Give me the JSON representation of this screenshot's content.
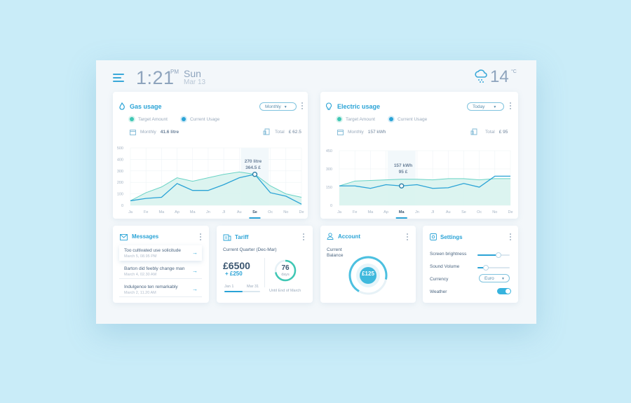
{
  "header": {
    "time": "1:21",
    "ampm": "PM",
    "day": "Sun",
    "date": "Mar 13",
    "temperature": "14",
    "temp_unit": "°C",
    "weather_icon": "cloud-snow-icon"
  },
  "gas": {
    "title": "Gas usage",
    "period": "Monthly",
    "legend_target": "Target Amount",
    "legend_current": "Current Usage",
    "monthly_label": "Monthly",
    "monthly_value": "41.6 litre",
    "total_label": "Total",
    "total_value": "£ 62.5",
    "tooltip_line1": "270 litre",
    "tooltip_line2": "364.5 £",
    "colors": {
      "target": "#3fc7b4",
      "current": "#2aa3d6"
    }
  },
  "electric": {
    "title": "Electric usage",
    "period": "Today",
    "legend_target": "Target Amount",
    "legend_current": "Current Usage",
    "monthly_label": "Monthly",
    "monthly_value": "157 kWh",
    "total_label": "Total",
    "total_value": "£ 95",
    "tooltip_line1": "157 kWh",
    "tooltip_line2": "95 £"
  },
  "chart_data": [
    {
      "type": "area",
      "categories": [
        "Ja",
        "Fe",
        "Ma",
        "Ap",
        "Ma",
        "Jn",
        "Jl",
        "Au",
        "Se",
        "Oc",
        "No",
        "De"
      ],
      "highlighted": "Se",
      "ylim": [
        0,
        500
      ],
      "yticks": [
        "500",
        "400",
        "300",
        "200",
        "100",
        "0"
      ],
      "series": [
        {
          "values": [
            40,
            110,
            160,
            240,
            210,
            240,
            270,
            290,
            270,
            170,
            100,
            70
          ]
        },
        {
          "values": [
            40,
            60,
            70,
            190,
            130,
            130,
            180,
            240,
            270,
            110,
            80,
            10
          ]
        }
      ]
    },
    {
      "type": "area",
      "categories": [
        "Ja",
        "Fe",
        "Ma",
        "Ap",
        "Ma",
        "Jn",
        "Jl",
        "Au",
        "Se",
        "Oc",
        "No",
        "De"
      ],
      "highlighted": "Ma",
      "ylim": [
        0,
        450
      ],
      "yticks": [
        "450",
        "300",
        "150",
        "0"
      ],
      "series": [
        {
          "values": [
            160,
            200,
            205,
            210,
            215,
            215,
            210,
            220,
            220,
            210,
            220,
            220
          ]
        },
        {
          "values": [
            160,
            160,
            140,
            170,
            160,
            170,
            140,
            145,
            180,
            150,
            240,
            240
          ]
        }
      ]
    }
  ],
  "messages": {
    "title": "Messages",
    "items": [
      {
        "title": "Too cultivated use solicitude",
        "time": "March 5, 08.95 PM"
      },
      {
        "title": "Barton did feebly change man",
        "time": "March 4, 02.30 AM"
      },
      {
        "title": "Indulgence ten remarkably",
        "time": "March 2, 11.20 AM"
      }
    ]
  },
  "tariff": {
    "title": "Tariff",
    "subtitle": "Current Quarter (Dec-Mar)",
    "amount": "£6500",
    "extra": "+ £250",
    "start": "Jan 1",
    "end": "Mar 31",
    "days_value": "76",
    "days_label": "days",
    "until_text": "Until End of March",
    "progress": 0.5
  },
  "account": {
    "title": "Account",
    "label_line1": "Current",
    "label_line2": "Balance",
    "balance": "£125",
    "progress": 0.7
  },
  "settings": {
    "title": "Settings",
    "brightness_label": "Screen brightness",
    "brightness_value": 0.65,
    "volume_label": "Sound Volume",
    "volume_value": 0.25,
    "currency_label": "Currency",
    "currency_value": "Euro",
    "weather_label": "Weather",
    "weather_on": true
  }
}
